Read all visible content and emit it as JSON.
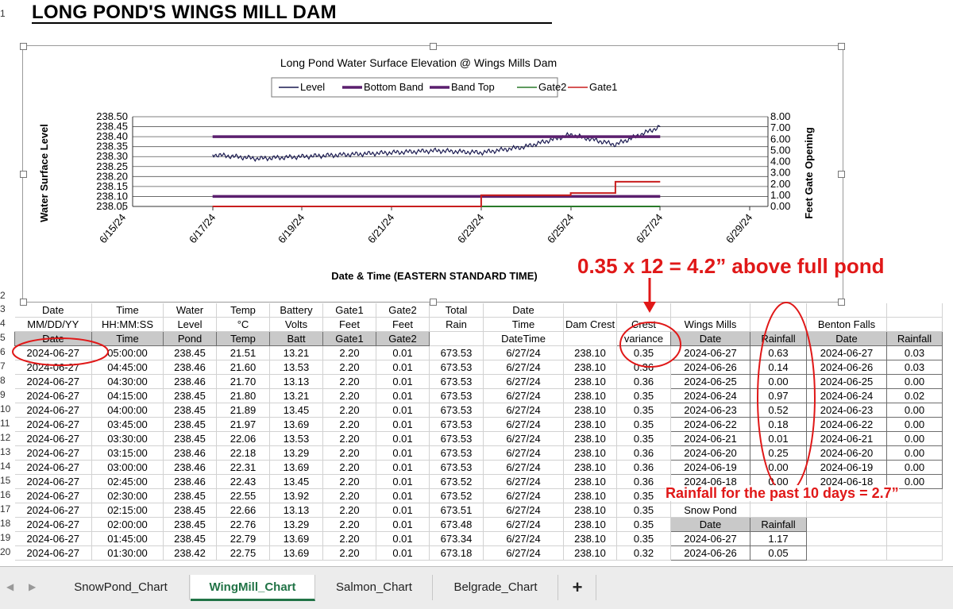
{
  "sheet": {
    "title": "LONG POND'S WINGS MILL DAM",
    "row_numbers": [
      "1",
      "2",
      "3",
      "4",
      "5",
      "6",
      "7",
      "8",
      "9",
      "10",
      "11",
      "12",
      "13",
      "14",
      "15",
      "16",
      "17",
      "18",
      "19",
      "20"
    ]
  },
  "chart_data": {
    "type": "line",
    "title": "Long Pond Water Surface Elevation @ Wings Mills Dam",
    "xlabel": "Date & Time (EASTERN STANDARD TIME)",
    "ylabel": "Water Surface Level",
    "y2label": "Feet Gate Opening",
    "x_ticks": [
      "6/15/24",
      "6/17/24",
      "6/19/24",
      "6/21/24",
      "6/23/24",
      "6/25/24",
      "6/27/24",
      "6/29/24"
    ],
    "y_ticks": [
      "238.05",
      "238.10",
      "238.15",
      "238.20",
      "238.25",
      "238.30",
      "238.35",
      "238.40",
      "238.45",
      "238.50"
    ],
    "y2_ticks": [
      "0.00",
      "1.00",
      "2.00",
      "3.00",
      "4.00",
      "5.00",
      "6.00",
      "7.00",
      "8.00"
    ],
    "ylim": [
      238.05,
      238.5
    ],
    "y2lim": [
      0,
      8
    ],
    "legend": [
      "Level",
      "Bottom Band",
      "Band Top",
      "Gate2",
      "Gate1"
    ],
    "legend_position": "top",
    "colors": {
      "Level": "#1a1a50",
      "Bottom Band": "#5b1f6e",
      "Band Top": "#5b1f6e",
      "Gate2": "#2a7a2a",
      "Gate1": "#c81e1e"
    },
    "series": [
      {
        "name": "Level",
        "x": [
          "6/17/24",
          "6/18/24",
          "6/19/24",
          "6/20/24",
          "6/21/24",
          "6/22/24",
          "6/23/24",
          "6/24/24",
          "6/25/24",
          "6/26/24",
          "6/27/24"
        ],
        "values": [
          238.31,
          238.29,
          238.3,
          238.31,
          238.32,
          238.33,
          238.32,
          238.35,
          238.41,
          238.36,
          238.45
        ]
      },
      {
        "name": "Bottom Band",
        "x": [
          "6/17/24",
          "6/27/24"
        ],
        "values": [
          238.1,
          238.1
        ]
      },
      {
        "name": "Band Top",
        "x": [
          "6/17/24",
          "6/27/24"
        ],
        "values": [
          238.4,
          238.4
        ]
      },
      {
        "name": "Gate2",
        "x": [
          "6/17/24",
          "6/27/24"
        ],
        "values": [
          0.0,
          0.0
        ]
      },
      {
        "name": "Gate1",
        "x": [
          "6/17/24",
          "6/23/24",
          "6/25/24",
          "6/26/24",
          "6/27/24"
        ],
        "values": [
          0.0,
          1.0,
          1.2,
          2.2,
          2.2
        ]
      }
    ]
  },
  "annotations": {
    "crest_note": "0.35 x 12 = 4.2” above full pond",
    "rain_note": "Rainfall for the past 10 days = 2.7”"
  },
  "table": {
    "header1": [
      "Date",
      "Time",
      "Water",
      "Temp",
      "Battery",
      "Gate1",
      "Gate2",
      "Total",
      "Date",
      "",
      "",
      "",
      "",
      "",
      ""
    ],
    "header2": [
      "MM/DD/YY",
      "HH:MM:SS",
      "Level",
      "°C",
      "Volts",
      "Feet",
      "Feet",
      "Rain",
      "Time",
      "Dam Crest",
      "Crest",
      "Wings Mills",
      "",
      "Benton Falls",
      ""
    ],
    "header3": [
      "Date",
      "Time",
      "Pond",
      "Temp",
      "Batt",
      "Gate1",
      "Gate2",
      "",
      "DateTime",
      "",
      "variance",
      "Date",
      "Rainfall",
      "Date",
      "Rainfall"
    ],
    "rows": [
      [
        "2024-06-27",
        "05:00:00",
        "238.45",
        "21.51",
        "13.21",
        "2.20",
        "0.01",
        "673.53",
        "6/27/24",
        "238.10",
        "0.35",
        "2024-06-27",
        "0.63",
        "2024-06-27",
        "0.03"
      ],
      [
        "2024-06-27",
        "04:45:00",
        "238.46",
        "21.60",
        "13.53",
        "2.20",
        "0.01",
        "673.53",
        "6/27/24",
        "238.10",
        "0.36",
        "2024-06-26",
        "0.14",
        "2024-06-26",
        "0.03"
      ],
      [
        "2024-06-27",
        "04:30:00",
        "238.46",
        "21.70",
        "13.13",
        "2.20",
        "0.01",
        "673.53",
        "6/27/24",
        "238.10",
        "0.36",
        "2024-06-25",
        "0.00",
        "2024-06-25",
        "0.00"
      ],
      [
        "2024-06-27",
        "04:15:00",
        "238.45",
        "21.80",
        "13.21",
        "2.20",
        "0.01",
        "673.53",
        "6/27/24",
        "238.10",
        "0.35",
        "2024-06-24",
        "0.97",
        "2024-06-24",
        "0.02"
      ],
      [
        "2024-06-27",
        "04:00:00",
        "238.45",
        "21.89",
        "13.45",
        "2.20",
        "0.01",
        "673.53",
        "6/27/24",
        "238.10",
        "0.35",
        "2024-06-23",
        "0.52",
        "2024-06-23",
        "0.00"
      ],
      [
        "2024-06-27",
        "03:45:00",
        "238.45",
        "21.97",
        "13.69",
        "2.20",
        "0.01",
        "673.53",
        "6/27/24",
        "238.10",
        "0.35",
        "2024-06-22",
        "0.18",
        "2024-06-22",
        "0.00"
      ],
      [
        "2024-06-27",
        "03:30:00",
        "238.45",
        "22.06",
        "13.53",
        "2.20",
        "0.01",
        "673.53",
        "6/27/24",
        "238.10",
        "0.35",
        "2024-06-21",
        "0.01",
        "2024-06-21",
        "0.00"
      ],
      [
        "2024-06-27",
        "03:15:00",
        "238.46",
        "22.18",
        "13.29",
        "2.20",
        "0.01",
        "673.53",
        "6/27/24",
        "238.10",
        "0.36",
        "2024-06-20",
        "0.25",
        "2024-06-20",
        "0.00"
      ],
      [
        "2024-06-27",
        "03:00:00",
        "238.46",
        "22.31",
        "13.69",
        "2.20",
        "0.01",
        "673.53",
        "6/27/24",
        "238.10",
        "0.36",
        "2024-06-19",
        "0.00",
        "2024-06-19",
        "0.00"
      ],
      [
        "2024-06-27",
        "02:45:00",
        "238.46",
        "22.43",
        "13.45",
        "2.20",
        "0.01",
        "673.52",
        "6/27/24",
        "238.10",
        "0.36",
        "2024-06-18",
        "0.00",
        "2024-06-18",
        "0.00"
      ],
      [
        "2024-06-27",
        "02:30:00",
        "238.45",
        "22.55",
        "13.92",
        "2.20",
        "0.01",
        "673.52",
        "6/27/24",
        "238.10",
        "0.35",
        "",
        "",
        "",
        ""
      ],
      [
        "2024-06-27",
        "02:15:00",
        "238.45",
        "22.66",
        "13.13",
        "2.20",
        "0.01",
        "673.51",
        "6/27/24",
        "238.10",
        "0.35",
        "Snow Pond",
        "",
        "",
        ""
      ],
      [
        "2024-06-27",
        "02:00:00",
        "238.45",
        "22.76",
        "13.29",
        "2.20",
        "0.01",
        "673.48",
        "6/27/24",
        "238.10",
        "0.35",
        "Date",
        "Rainfall",
        "",
        ""
      ],
      [
        "2024-06-27",
        "01:45:00",
        "238.45",
        "22.79",
        "13.69",
        "2.20",
        "0.01",
        "673.34",
        "6/27/24",
        "238.10",
        "0.35",
        "2024-06-27",
        "1.17",
        "",
        ""
      ],
      [
        "2024-06-27",
        "01:30:00",
        "238.42",
        "22.75",
        "13.69",
        "2.20",
        "0.01",
        "673.18",
        "6/27/24",
        "238.10",
        "0.32",
        "2024-06-26",
        "0.05",
        "",
        ""
      ]
    ]
  },
  "tabs": [
    {
      "label": "SnowPond_Chart",
      "active": false
    },
    {
      "label": "WingMill_Chart",
      "active": true
    },
    {
      "label": "Salmon_Chart",
      "active": false
    },
    {
      "label": "Belgrade_Chart",
      "active": false
    }
  ],
  "add_sheet_label": "+",
  "nav": {
    "prev": "◀",
    "next": "▶"
  }
}
